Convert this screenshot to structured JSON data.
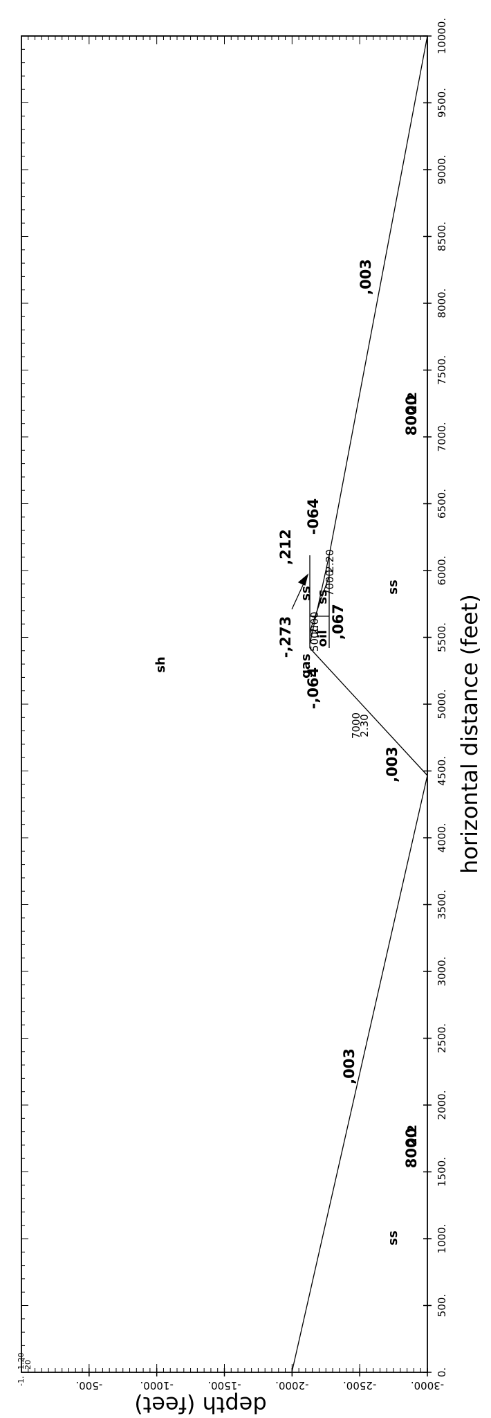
{
  "x_axis": {
    "label": "horizontal distance (feet)",
    "ticks": [
      "0.",
      "500.",
      "1000.",
      "1500.",
      "2000.",
      "2500.",
      "3000.",
      "3500.",
      "4000.",
      "4500.",
      "5000.",
      "5500.",
      "6000.",
      "6500.",
      "7000.",
      "7500.",
      "8000.",
      "8500.",
      "9000.",
      "9500.",
      "10000."
    ]
  },
  "y_axis": {
    "label": "depth (feet)",
    "ticks": [
      "-500.",
      "-1000.",
      "-1500.",
      "-2000.",
      "-2500.",
      "-3000."
    ],
    "corner_labels": [
      "1.20",
      "-1.",
      "20"
    ]
  },
  "layers": {
    "shale": "sh",
    "sandstone_left": "ss",
    "sandstone_right": "ss",
    "gas": "gas",
    "oil": "oil",
    "ss_reservoir_top": "ss",
    "ss_reservoir_bottom": "ss"
  },
  "properties": {
    "left_velocity": "8000",
    "left_density": "2.2",
    "right_velocity": "8000",
    "right_density": "2.2",
    "gas_velocity": "5000",
    "oil_density": "2.00",
    "ss_velocity_top": "7000",
    "ss_density_top": "2.20",
    "ss_velocity_left": "7000",
    "ss_density_left": "2.30"
  },
  "reflection_coefficients": {
    "left_flank": ",003",
    "mid_left": ",003",
    "right_flank": ",003",
    "left_064": "-,064",
    "right_064": "-064",
    "gas_273": "-,273",
    "ss_212": ",212",
    "oil_067": ",067"
  }
}
